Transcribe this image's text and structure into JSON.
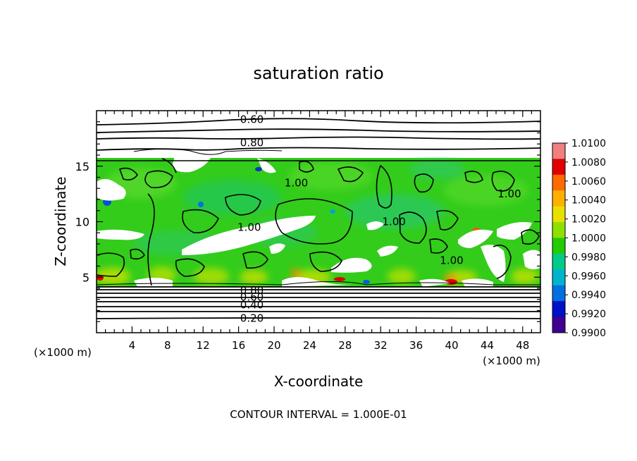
{
  "chart_data": {
    "type": "heatmap",
    "title": "saturation ratio",
    "xlabel": "X-coordinate",
    "ylabel": "Z-coordinate",
    "x_unit": "(×1000 m)",
    "y_unit": "(×1000 m)",
    "footer": "CONTOUR INTERVAL = 1.000E-01",
    "xlim": [
      0,
      50
    ],
    "ylim": [
      0,
      20
    ],
    "x_ticks": [
      "4",
      "8",
      "12",
      "16",
      "20",
      "24",
      "28",
      "32",
      "36",
      "40",
      "44",
      "48"
    ],
    "y_ticks": [
      "5",
      "10",
      "15"
    ],
    "colorbar": {
      "min": 0.99,
      "max": 1.01,
      "labels": [
        "1.0100",
        "1.0080",
        "1.0060",
        "1.0040",
        "1.0020",
        "1.0000",
        "0.9980",
        "0.9960",
        "0.9940",
        "0.9920",
        "0.9900"
      ],
      "colors": [
        "#f08080",
        "#e00000",
        "#ff6a00",
        "#ffb000",
        "#e8e000",
        "#8ee000",
        "#22cc00",
        "#00cc88",
        "#00b4cc",
        "#0070e0",
        "#0010c8",
        "#400090"
      ]
    },
    "contour_labels": [
      {
        "text": "0.60",
        "x": 17.5,
        "y": 19.2
      },
      {
        "text": "0.80",
        "x": 17.5,
        "y": 17.1
      },
      {
        "text": "1.00",
        "x": 17.2,
        "y": 9.5
      },
      {
        "text": "1.00",
        "x": 22.5,
        "y": 13.5
      },
      {
        "text": "1.00",
        "x": 33.5,
        "y": 10.0
      },
      {
        "text": "1.00",
        "x": 40.0,
        "y": 6.5
      },
      {
        "text": "1.00",
        "x": 46.5,
        "y": 12.5
      },
      {
        "text": "0.80",
        "x": 17.5,
        "y": 3.8
      },
      {
        "text": "0.60",
        "x": 17.5,
        "y": 3.2
      },
      {
        "text": "0.40",
        "x": 17.5,
        "y": 2.5
      },
      {
        "text": "0.20",
        "x": 17.5,
        "y": 1.3
      }
    ]
  }
}
